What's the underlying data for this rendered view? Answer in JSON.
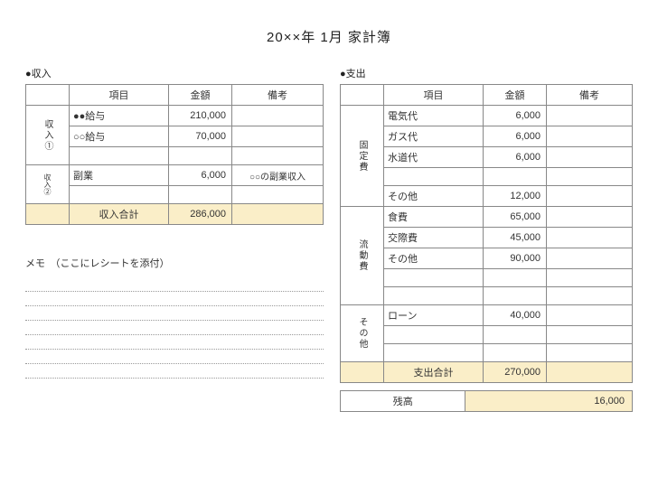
{
  "title": "20××年 1月 家計簿",
  "income": {
    "section_label": "●収入",
    "headers": {
      "item": "項目",
      "amount": "金額",
      "note": "備考"
    },
    "group1_label": "収入①",
    "group1_rows": [
      {
        "item": "●●給与",
        "amount": "210,000",
        "note": ""
      },
      {
        "item": "○○給与",
        "amount": "70,000",
        "note": ""
      },
      {
        "item": "",
        "amount": "",
        "note": ""
      }
    ],
    "group2_label": "収入②",
    "group2_rows": [
      {
        "item": "副業",
        "amount": "6,000",
        "note": "○○の副業収入"
      },
      {
        "item": "",
        "amount": "",
        "note": ""
      }
    ],
    "total_label": "収入合計",
    "total_amount": "286,000"
  },
  "memo": {
    "title": "メモ　（ここにレシートを添付）",
    "line_count": 7
  },
  "expense": {
    "section_label": "●支出",
    "headers": {
      "item": "項目",
      "amount": "金額",
      "note": "備考"
    },
    "fixed_label": "固定費",
    "fixed_rows": [
      {
        "item": "電気代",
        "amount": "6,000",
        "note": ""
      },
      {
        "item": "ガス代",
        "amount": "6,000",
        "note": ""
      },
      {
        "item": "水道代",
        "amount": "6,000",
        "note": ""
      },
      {
        "item": "",
        "amount": "",
        "note": ""
      },
      {
        "item": "その他",
        "amount": "12,000",
        "note": ""
      }
    ],
    "var_label": "流動費",
    "var_rows": [
      {
        "item": "食費",
        "amount": "65,000",
        "note": ""
      },
      {
        "item": "交際費",
        "amount": "45,000",
        "note": ""
      },
      {
        "item": "その他",
        "amount": "90,000",
        "note": ""
      },
      {
        "item": "",
        "amount": "",
        "note": ""
      },
      {
        "item": "",
        "amount": "",
        "note": ""
      }
    ],
    "other_label": "その他",
    "other_rows": [
      {
        "item": "ローン",
        "amount": "40,000",
        "note": ""
      },
      {
        "item": "",
        "amount": "",
        "note": ""
      },
      {
        "item": "",
        "amount": "",
        "note": ""
      }
    ],
    "total_label": "支出合計",
    "total_amount": "270,000"
  },
  "balance": {
    "label": "残高",
    "amount": "16,000"
  },
  "colors": {
    "highlight_bg": "#faeec8",
    "border": "#888888",
    "dotted": "#999999",
    "page_bg": "#ffffff"
  }
}
